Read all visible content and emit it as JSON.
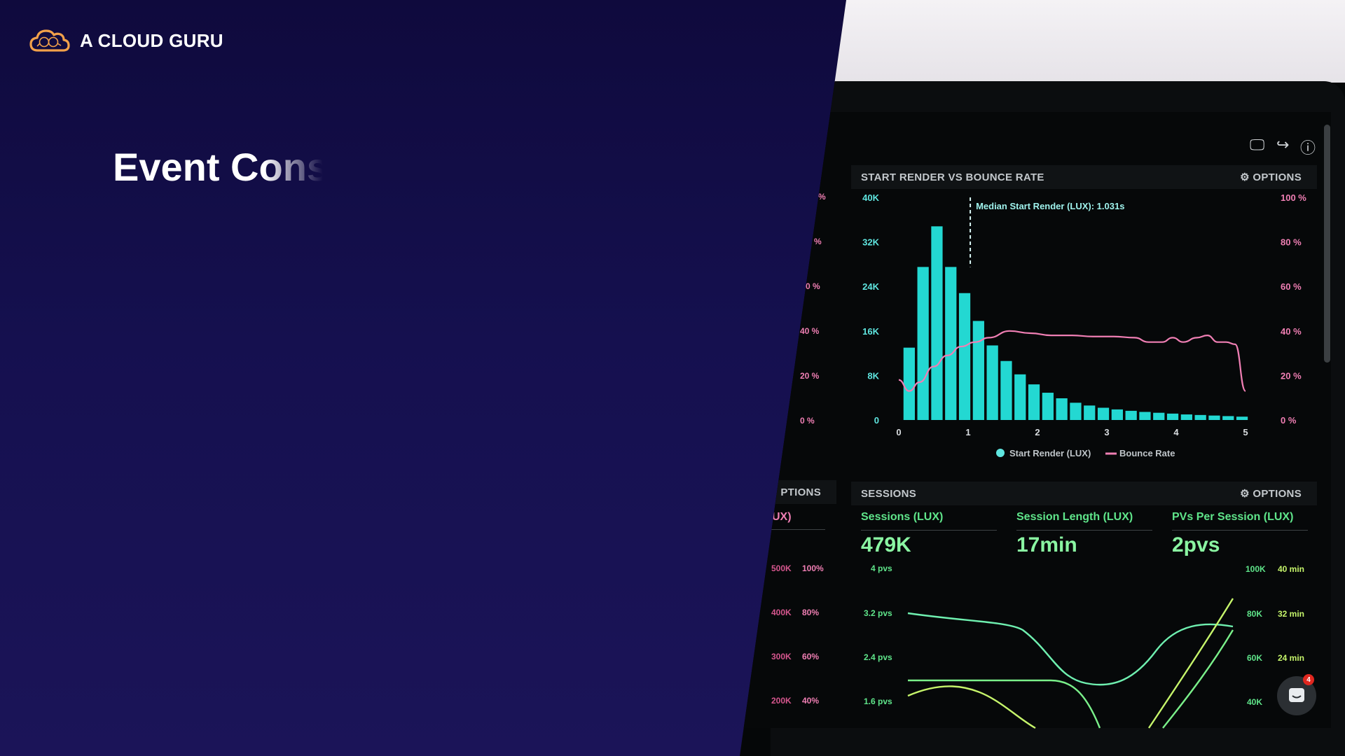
{
  "brand": {
    "name": "A CLOUD GURU",
    "accent": "#f2a14a"
  },
  "slide": {
    "title": "Event Cons"
  },
  "dashboard": {
    "render_panel": {
      "title": "START RENDER VS BOUNCE RATE",
      "options_label": "OPTIONS",
      "median_annotation": "Median Start Render (LUX): 1.031s",
      "legend": [
        "Start Render (LUX)",
        "Bounce Rate"
      ]
    },
    "left_partial": {
      "options_label": "PTIONS",
      "metric_label": "UX)",
      "left_pct_ticks": [
        "%",
        "%",
        "0 %",
        "40 %",
        "20 %",
        "0 %"
      ],
      "sessions_ticks": [
        "500K",
        "400K",
        "300K",
        "200K"
      ],
      "pct_ticks": [
        "100%",
        "80%",
        "60%",
        "40%"
      ]
    },
    "sessions_panel": {
      "title": "SESSIONS",
      "options_label": "OPTIONS",
      "metrics": [
        {
          "label": "Sessions (LUX)",
          "value": "479K"
        },
        {
          "label": "Session Length (LUX)",
          "value": "17min"
        },
        {
          "label": "PVs Per Session (LUX)",
          "value": "2pvs"
        }
      ],
      "pvs_ticks": [
        "4 pvs",
        "3.2 pvs",
        "2.4 pvs",
        "1.6 pvs"
      ],
      "right_count_ticks": [
        "100K",
        "80K",
        "60K",
        "40K"
      ],
      "right_min_ticks": [
        "40 min",
        "32 min",
        "24 min"
      ]
    },
    "chat_badge_count": "4"
  },
  "chart_data": {
    "type": "bar",
    "title": "START RENDER VS BOUNCE RATE",
    "xlabel": "",
    "ylabel": "",
    "x_ticks": [
      "0",
      "1",
      "2",
      "3",
      "4",
      "5"
    ],
    "y_left_ticks": [
      "0",
      "8K",
      "16K",
      "24K",
      "32K",
      "40K"
    ],
    "y_right_ticks": [
      "0 %",
      "20 %",
      "40 %",
      "60 %",
      "80 %",
      "100 %"
    ],
    "ylim_left": [
      0,
      40000
    ],
    "ylim_right": [
      0,
      100
    ],
    "xlim": [
      0,
      5
    ],
    "bars": {
      "name": "Start Render (LUX)",
      "color": "#23d8d2",
      "x": [
        0.15,
        0.35,
        0.55,
        0.75,
        0.95,
        1.15,
        1.35,
        1.55,
        1.75,
        1.95,
        2.15,
        2.35,
        2.55,
        2.75,
        2.95,
        3.15,
        3.35,
        3.55,
        3.75,
        3.95,
        4.15,
        4.35,
        4.55,
        4.75,
        4.95
      ],
      "values": [
        13000,
        27500,
        34800,
        27500,
        22800,
        17800,
        13400,
        10600,
        8200,
        6400,
        4900,
        3900,
        3100,
        2600,
        2200,
        1900,
        1650,
        1450,
        1300,
        1150,
        1000,
        900,
        800,
        700,
        600
      ]
    },
    "line": {
      "name": "Bounce Rate",
      "color": "#f07fb4",
      "x": [
        0.0,
        0.15,
        0.3,
        0.5,
        0.7,
        0.9,
        1.1,
        1.3,
        1.6,
        1.9,
        2.2,
        2.5,
        2.8,
        3.1,
        3.4,
        3.6,
        3.8,
        3.95,
        4.1,
        4.3,
        4.45,
        4.6,
        4.72,
        4.85,
        5.0
      ],
      "values": [
        18,
        13,
        17,
        24,
        29,
        33,
        35,
        37,
        40,
        39,
        38,
        38,
        37.5,
        37.5,
        37,
        35,
        35,
        37,
        35,
        37,
        38,
        35,
        35,
        34,
        13
      ]
    },
    "annotation": {
      "x": 1.031,
      "text": "Median Start Render (LUX): 1.031s"
    },
    "legend": "bottom-center",
    "grid": false
  }
}
